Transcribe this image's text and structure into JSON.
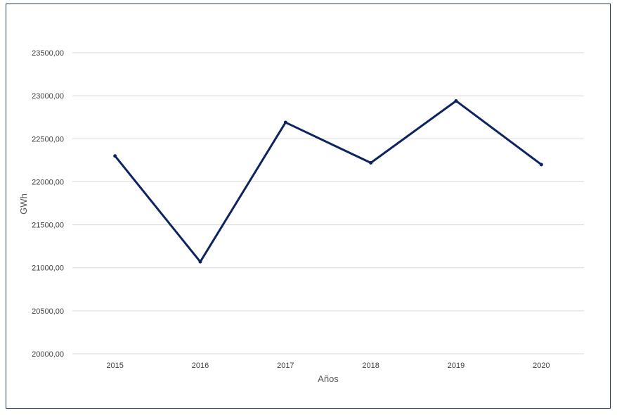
{
  "chart_data": {
    "type": "line",
    "title": "",
    "xlabel": "Años",
    "ylabel": "GWh",
    "categories": [
      "2015",
      "2016",
      "2017",
      "2018",
      "2019",
      "2020"
    ],
    "series": [
      {
        "values": [
          22300,
          21070,
          22690,
          22220,
          22940,
          22200
        ]
      }
    ],
    "ylim": [
      20000,
      23500
    ],
    "yticks": [
      20000,
      20500,
      21000,
      21500,
      22000,
      22500,
      23000,
      23500
    ],
    "ytick_labels": [
      "20000,00",
      "20500,00",
      "21000,00",
      "21500,00",
      "22000,00",
      "22500,00",
      "23000,00",
      "23500,00"
    ],
    "grid": true,
    "legend": "none",
    "colors": {
      "line": "#0e2460",
      "grid": "#d9d9d9",
      "frame": "#1f3a52",
      "text": "#404040"
    }
  }
}
